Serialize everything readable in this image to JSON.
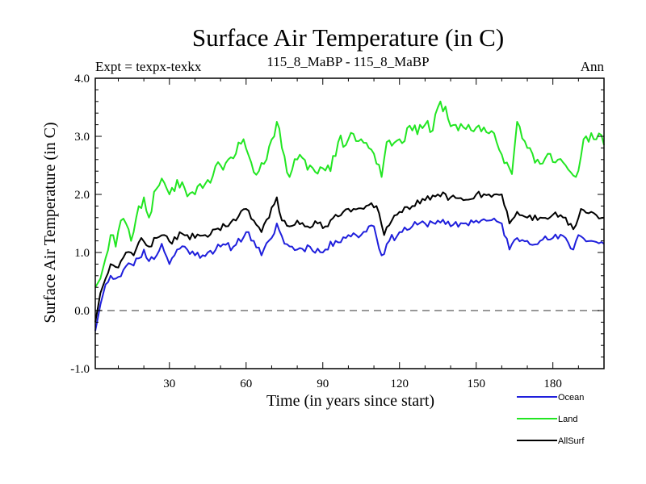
{
  "chart_data": {
    "type": "line",
    "title": "Surface Air Temperature (in C)",
    "subtitle_left": "Expt = texpx-texkx",
    "subtitle_center": "115_8_MaBP - 115_8_MaBP",
    "subtitle_right": "Ann",
    "xlabel": "Time (in years since start)",
    "ylabel": "Surface Air Temperature (in C)",
    "xlim": [
      1,
      200
    ],
    "ylim": [
      -1.0,
      4.0
    ],
    "xticks": [
      30,
      60,
      90,
      120,
      150,
      180
    ],
    "xtick_labels": [
      "30",
      "60",
      "90",
      "120",
      "150",
      "180"
    ],
    "yticks": [
      -1.0,
      0.0,
      1.0,
      2.0,
      3.0,
      4.0
    ],
    "ytick_labels": [
      "-1.0",
      "0.0",
      "1.0",
      "2.0",
      "3.0",
      "4.0"
    ],
    "reference_line": {
      "y": 0.0,
      "style": "dashed",
      "color": "#777777"
    },
    "legend_position": "bottom-right",
    "series": [
      {
        "name": "Ocean",
        "color": "#1f1fdc",
        "anchors": [
          [
            1,
            -0.35
          ],
          [
            3,
            0.1
          ],
          [
            5,
            0.45
          ],
          [
            7,
            0.6
          ],
          [
            9,
            0.55
          ],
          [
            12,
            0.7
          ],
          [
            15,
            0.8
          ],
          [
            18,
            0.9
          ],
          [
            20,
            1.05
          ],
          [
            22,
            0.85
          ],
          [
            25,
            0.95
          ],
          [
            27,
            1.15
          ],
          [
            30,
            0.8
          ],
          [
            33,
            1.05
          ],
          [
            36,
            1.1
          ],
          [
            40,
            0.95
          ],
          [
            45,
            1.0
          ],
          [
            50,
            1.1
          ],
          [
            55,
            1.1
          ],
          [
            60,
            1.35
          ],
          [
            63,
            1.2
          ],
          [
            66,
            0.95
          ],
          [
            70,
            1.25
          ],
          [
            72,
            1.5
          ],
          [
            75,
            1.15
          ],
          [
            78,
            1.1
          ],
          [
            80,
            1.05
          ],
          [
            85,
            1.1
          ],
          [
            90,
            1.0
          ],
          [
            95,
            1.2
          ],
          [
            100,
            1.3
          ],
          [
            105,
            1.3
          ],
          [
            108,
            1.45
          ],
          [
            110,
            1.45
          ],
          [
            113,
            0.95
          ],
          [
            116,
            1.2
          ],
          [
            120,
            1.35
          ],
          [
            125,
            1.45
          ],
          [
            130,
            1.5
          ],
          [
            135,
            1.55
          ],
          [
            140,
            1.45
          ],
          [
            145,
            1.5
          ],
          [
            150,
            1.55
          ],
          [
            155,
            1.55
          ],
          [
            160,
            1.5
          ],
          [
            163,
            1.05
          ],
          [
            166,
            1.25
          ],
          [
            170,
            1.2
          ],
          [
            175,
            1.2
          ],
          [
            180,
            1.25
          ],
          [
            185,
            1.25
          ],
          [
            188,
            1.05
          ],
          [
            190,
            1.3
          ],
          [
            195,
            1.2
          ],
          [
            200,
            1.15
          ]
        ],
        "seed": 11,
        "noise": 0.07
      },
      {
        "name": "Land",
        "color": "#22e622",
        "anchors": [
          [
            1,
            0.4
          ],
          [
            3,
            0.55
          ],
          [
            5,
            0.9
          ],
          [
            7,
            1.3
          ],
          [
            9,
            1.1
          ],
          [
            11,
            1.55
          ],
          [
            13,
            1.5
          ],
          [
            15,
            1.2
          ],
          [
            17,
            1.6
          ],
          [
            20,
            1.95
          ],
          [
            22,
            1.6
          ],
          [
            25,
            2.1
          ],
          [
            28,
            2.2
          ],
          [
            30,
            2.0
          ],
          [
            33,
            2.25
          ],
          [
            36,
            2.1
          ],
          [
            40,
            2.0
          ],
          [
            45,
            2.25
          ],
          [
            50,
            2.5
          ],
          [
            53,
            2.6
          ],
          [
            56,
            2.7
          ],
          [
            59,
            2.95
          ],
          [
            62,
            2.55
          ],
          [
            65,
            2.4
          ],
          [
            68,
            2.6
          ],
          [
            71,
            3.0
          ],
          [
            72,
            3.25
          ],
          [
            74,
            2.8
          ],
          [
            77,
            2.3
          ],
          [
            80,
            2.6
          ],
          [
            85,
            2.5
          ],
          [
            90,
            2.45
          ],
          [
            93,
            2.4
          ],
          [
            96,
            2.9
          ],
          [
            100,
            2.95
          ],
          [
            105,
            2.95
          ],
          [
            108,
            2.8
          ],
          [
            110,
            2.7
          ],
          [
            113,
            2.3
          ],
          [
            115,
            2.9
          ],
          [
            120,
            2.95
          ],
          [
            125,
            3.1
          ],
          [
            130,
            3.2
          ],
          [
            133,
            3.1
          ],
          [
            136,
            3.6
          ],
          [
            139,
            3.3
          ],
          [
            143,
            3.1
          ],
          [
            147,
            3.2
          ],
          [
            150,
            3.15
          ],
          [
            155,
            3.05
          ],
          [
            158,
            2.9
          ],
          [
            162,
            2.55
          ],
          [
            164,
            2.35
          ],
          [
            166,
            3.25
          ],
          [
            170,
            2.8
          ],
          [
            174,
            2.6
          ],
          [
            178,
            2.7
          ],
          [
            182,
            2.6
          ],
          [
            185,
            2.5
          ],
          [
            189,
            2.3
          ],
          [
            192,
            2.95
          ],
          [
            196,
            2.95
          ],
          [
            198,
            3.05
          ],
          [
            200,
            2.85
          ]
        ],
        "seed": 29,
        "noise": 0.12
      },
      {
        "name": "AllSurf",
        "color": "#000000",
        "anchors": [
          [
            1,
            -0.2
          ],
          [
            3,
            0.3
          ],
          [
            5,
            0.55
          ],
          [
            7,
            0.8
          ],
          [
            9,
            0.75
          ],
          [
            11,
            0.85
          ],
          [
            13,
            1.0
          ],
          [
            16,
            0.95
          ],
          [
            19,
            1.25
          ],
          [
            22,
            1.1
          ],
          [
            25,
            1.25
          ],
          [
            28,
            1.3
          ],
          [
            31,
            1.15
          ],
          [
            34,
            1.35
          ],
          [
            37,
            1.3
          ],
          [
            40,
            1.25
          ],
          [
            44,
            1.3
          ],
          [
            48,
            1.4
          ],
          [
            52,
            1.45
          ],
          [
            56,
            1.55
          ],
          [
            60,
            1.75
          ],
          [
            63,
            1.55
          ],
          [
            66,
            1.35
          ],
          [
            69,
            1.6
          ],
          [
            72,
            1.95
          ],
          [
            74,
            1.55
          ],
          [
            77,
            1.45
          ],
          [
            80,
            1.55
          ],
          [
            84,
            1.45
          ],
          [
            88,
            1.5
          ],
          [
            92,
            1.45
          ],
          [
            95,
            1.65
          ],
          [
            98,
            1.7
          ],
          [
            102,
            1.75
          ],
          [
            106,
            1.75
          ],
          [
            109,
            1.85
          ],
          [
            111,
            1.8
          ],
          [
            114,
            1.3
          ],
          [
            117,
            1.55
          ],
          [
            120,
            1.7
          ],
          [
            125,
            1.8
          ],
          [
            130,
            1.9
          ],
          [
            135,
            2.0
          ],
          [
            140,
            1.95
          ],
          [
            145,
            1.9
          ],
          [
            150,
            2.0
          ],
          [
            155,
            2.0
          ],
          [
            160,
            2.0
          ],
          [
            163,
            1.5
          ],
          [
            166,
            1.7
          ],
          [
            170,
            1.6
          ],
          [
            175,
            1.6
          ],
          [
            180,
            1.65
          ],
          [
            185,
            1.6
          ],
          [
            188,
            1.4
          ],
          [
            191,
            1.75
          ],
          [
            195,
            1.7
          ],
          [
            200,
            1.6
          ]
        ],
        "seed": 47,
        "noise": 0.06
      }
    ]
  }
}
